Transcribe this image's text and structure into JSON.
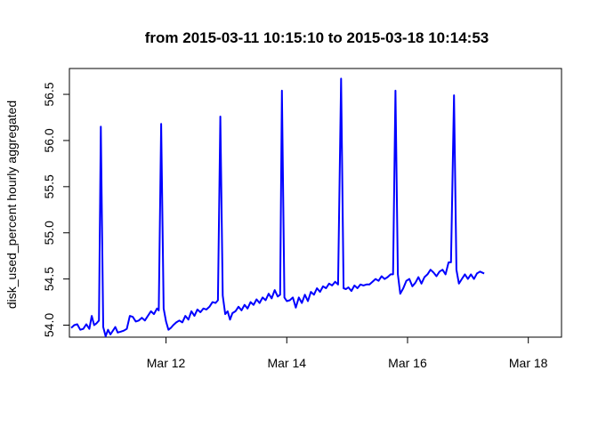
{
  "chart_data": {
    "type": "line",
    "title": "from  2015-03-11 10:15:10  to  2015-03-18 10:14:53",
    "xlabel": "",
    "ylabel": "disk_used_percent hourly aggregated",
    "x_start": "2015-03-11 10:15:10",
    "x_end": "2015-03-18 10:14:53",
    "x_ticks": [
      {
        "label": "Mar 12",
        "value": 1.0
      },
      {
        "label": "Mar 14",
        "value": 3.0
      },
      {
        "label": "Mar 16",
        "value": 5.0
      },
      {
        "label": "Mar 18",
        "value": 7.0
      }
    ],
    "y_ticks": [
      {
        "label": "54.0",
        "value": 54.0
      },
      {
        "label": "54.5",
        "value": 54.5
      },
      {
        "label": "55.0",
        "value": 55.0
      },
      {
        "label": "55.5",
        "value": 55.5
      },
      {
        "label": "56.0",
        "value": 56.0
      },
      {
        "label": "56.5",
        "value": 56.5
      }
    ],
    "xlim": [
      -0.6,
      7.55
    ],
    "ylim": [
      53.87,
      56.78
    ],
    "grid": false,
    "legend": "none",
    "series": [
      {
        "color": "#0000ff",
        "points": [
          [
            -0.57,
            53.97
          ],
          [
            -0.52,
            54.0
          ],
          [
            -0.47,
            54.01
          ],
          [
            -0.42,
            53.95
          ],
          [
            -0.37,
            53.96
          ],
          [
            -0.32,
            54.01
          ],
          [
            -0.27,
            53.96
          ],
          [
            -0.23,
            54.1
          ],
          [
            -0.19,
            54.0
          ],
          [
            -0.15,
            54.02
          ],
          [
            -0.11,
            54.05
          ],
          [
            -0.08,
            56.15
          ],
          [
            -0.04,
            53.98
          ],
          [
            0.0,
            53.88
          ],
          [
            0.04,
            53.95
          ],
          [
            0.08,
            53.9
          ],
          [
            0.12,
            53.94
          ],
          [
            0.16,
            53.98
          ],
          [
            0.2,
            53.92
          ],
          [
            0.25,
            53.93
          ],
          [
            0.3,
            53.94
          ],
          [
            0.35,
            53.96
          ],
          [
            0.4,
            54.1
          ],
          [
            0.45,
            54.09
          ],
          [
            0.5,
            54.04
          ],
          [
            0.55,
            54.05
          ],
          [
            0.6,
            54.08
          ],
          [
            0.65,
            54.05
          ],
          [
            0.7,
            54.1
          ],
          [
            0.75,
            54.15
          ],
          [
            0.8,
            54.12
          ],
          [
            0.85,
            54.18
          ],
          [
            0.88,
            54.16
          ],
          [
            0.92,
            56.18
          ],
          [
            0.96,
            54.18
          ],
          [
            1.0,
            54.04
          ],
          [
            1.04,
            53.95
          ],
          [
            1.08,
            53.97
          ],
          [
            1.12,
            54.0
          ],
          [
            1.17,
            54.03
          ],
          [
            1.22,
            54.05
          ],
          [
            1.27,
            54.03
          ],
          [
            1.32,
            54.1
          ],
          [
            1.37,
            54.06
          ],
          [
            1.42,
            54.15
          ],
          [
            1.47,
            54.1
          ],
          [
            1.52,
            54.17
          ],
          [
            1.57,
            54.14
          ],
          [
            1.62,
            54.18
          ],
          [
            1.67,
            54.17
          ],
          [
            1.72,
            54.2
          ],
          [
            1.77,
            54.25
          ],
          [
            1.82,
            54.24
          ],
          [
            1.86,
            54.27
          ],
          [
            1.9,
            56.26
          ],
          [
            1.94,
            54.32
          ],
          [
            1.98,
            54.12
          ],
          [
            2.02,
            54.15
          ],
          [
            2.06,
            54.06
          ],
          [
            2.1,
            54.13
          ],
          [
            2.15,
            54.15
          ],
          [
            2.2,
            54.2
          ],
          [
            2.25,
            54.16
          ],
          [
            2.3,
            54.22
          ],
          [
            2.35,
            54.18
          ],
          [
            2.4,
            54.25
          ],
          [
            2.45,
            54.22
          ],
          [
            2.5,
            54.28
          ],
          [
            2.55,
            54.24
          ],
          [
            2.6,
            54.3
          ],
          [
            2.65,
            54.27
          ],
          [
            2.7,
            54.34
          ],
          [
            2.75,
            54.29
          ],
          [
            2.8,
            54.38
          ],
          [
            2.85,
            54.31
          ],
          [
            2.89,
            54.33
          ],
          [
            2.92,
            56.54
          ],
          [
            2.96,
            54.3
          ],
          [
            3.0,
            54.26
          ],
          [
            3.05,
            54.27
          ],
          [
            3.1,
            54.3
          ],
          [
            3.15,
            54.19
          ],
          [
            3.2,
            54.3
          ],
          [
            3.25,
            54.24
          ],
          [
            3.3,
            54.33
          ],
          [
            3.35,
            54.26
          ],
          [
            3.4,
            54.36
          ],
          [
            3.45,
            54.33
          ],
          [
            3.5,
            54.4
          ],
          [
            3.55,
            54.36
          ],
          [
            3.6,
            54.42
          ],
          [
            3.65,
            54.4
          ],
          [
            3.7,
            54.45
          ],
          [
            3.75,
            54.43
          ],
          [
            3.8,
            54.47
          ],
          [
            3.85,
            54.44
          ],
          [
            3.9,
            56.67
          ],
          [
            3.94,
            54.4
          ],
          [
            3.98,
            54.39
          ],
          [
            4.02,
            54.41
          ],
          [
            4.07,
            54.37
          ],
          [
            4.12,
            54.43
          ],
          [
            4.17,
            54.4
          ],
          [
            4.22,
            54.44
          ],
          [
            4.27,
            54.43
          ],
          [
            4.32,
            54.44
          ],
          [
            4.37,
            54.44
          ],
          [
            4.42,
            54.47
          ],
          [
            4.47,
            54.5
          ],
          [
            4.52,
            54.48
          ],
          [
            4.57,
            54.53
          ],
          [
            4.62,
            54.5
          ],
          [
            4.67,
            54.52
          ],
          [
            4.72,
            54.55
          ],
          [
            4.76,
            54.55
          ],
          [
            4.8,
            56.54
          ],
          [
            4.84,
            54.55
          ],
          [
            4.88,
            54.34
          ],
          [
            4.93,
            54.4
          ],
          [
            4.98,
            54.48
          ],
          [
            5.03,
            54.5
          ],
          [
            5.08,
            54.42
          ],
          [
            5.13,
            54.46
          ],
          [
            5.18,
            54.52
          ],
          [
            5.23,
            54.45
          ],
          [
            5.28,
            54.52
          ],
          [
            5.33,
            54.55
          ],
          [
            5.38,
            54.6
          ],
          [
            5.43,
            54.57
          ],
          [
            5.48,
            54.53
          ],
          [
            5.53,
            54.58
          ],
          [
            5.58,
            54.6
          ],
          [
            5.63,
            54.55
          ],
          [
            5.68,
            54.68
          ],
          [
            5.72,
            54.68
          ],
          [
            5.77,
            56.49
          ],
          [
            5.81,
            54.6
          ],
          [
            5.85,
            54.45
          ],
          [
            5.9,
            54.5
          ],
          [
            5.95,
            54.55
          ],
          [
            6.0,
            54.5
          ],
          [
            6.05,
            54.55
          ],
          [
            6.1,
            54.5
          ],
          [
            6.15,
            54.56
          ],
          [
            6.2,
            54.58
          ],
          [
            6.27,
            54.56
          ]
        ]
      }
    ]
  }
}
